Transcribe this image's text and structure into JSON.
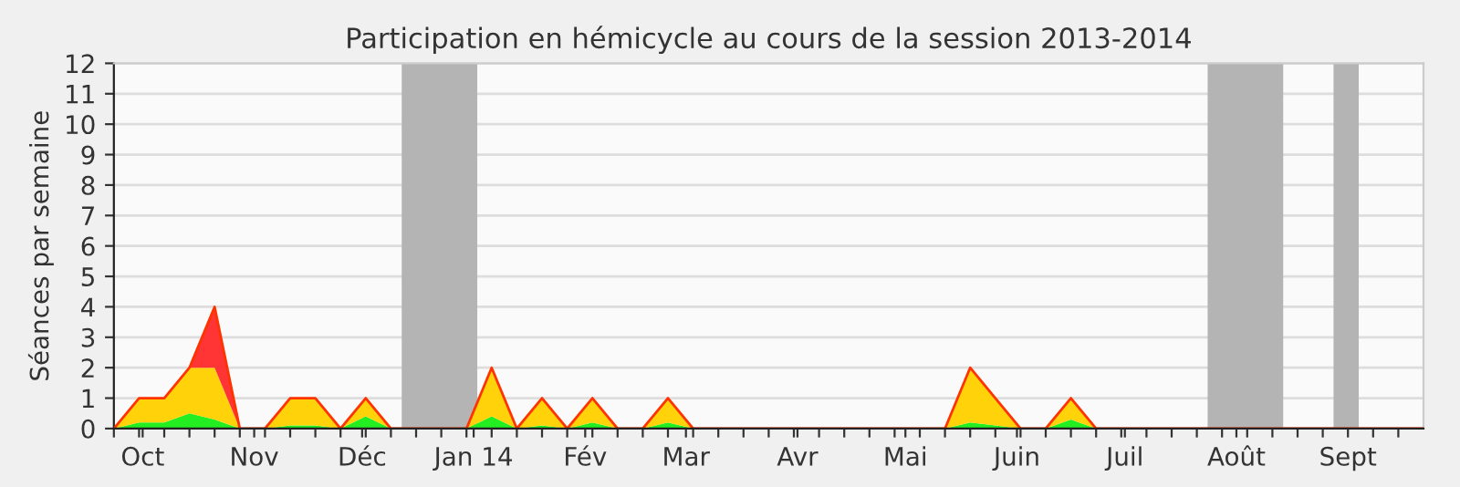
{
  "chart_data": {
    "type": "area",
    "title": "Participation en hémicycle au cours de la session 2013-2014",
    "ylabel": "Séances par semaine",
    "x": [
      "2013-09-23",
      "2013-09-30",
      "2013-10-07",
      "2013-10-14",
      "2013-10-21",
      "2013-10-28",
      "2013-11-04",
      "2013-11-11",
      "2013-11-18",
      "2013-11-25",
      "2013-12-02",
      "2013-12-09",
      "2013-12-16",
      "2013-12-23",
      "2013-12-30",
      "2014-01-06",
      "2014-01-13",
      "2014-01-20",
      "2014-01-27",
      "2014-02-03",
      "2014-02-10",
      "2014-02-17",
      "2014-02-24",
      "2014-03-03",
      "2014-03-10",
      "2014-03-17",
      "2014-03-24",
      "2014-03-31",
      "2014-04-07",
      "2014-04-14",
      "2014-04-21",
      "2014-04-28",
      "2014-05-05",
      "2014-05-12",
      "2014-05-19",
      "2014-05-26",
      "2014-06-02",
      "2014-06-09",
      "2014-06-16",
      "2014-06-23",
      "2014-06-30",
      "2014-07-07",
      "2014-07-14",
      "2014-07-21",
      "2014-07-28",
      "2014-08-04",
      "2014-08-11",
      "2014-08-18",
      "2014-08-25",
      "2014-09-01",
      "2014-09-08",
      "2014-09-15",
      "2014-09-22"
    ],
    "stacked": true,
    "series": [
      {
        "color": "#22ee22",
        "values": [
          0,
          0.2,
          0.2,
          0.5,
          0.3,
          0,
          0,
          0.1,
          0.1,
          0,
          0.4,
          0,
          0,
          0,
          0,
          0.4,
          0,
          0.1,
          0,
          0.2,
          0,
          0,
          0.2,
          0,
          0,
          0,
          0,
          0,
          0,
          0,
          0,
          0,
          0,
          0,
          0.2,
          0.1,
          0,
          0,
          0.3,
          0,
          0,
          0,
          0,
          0,
          0,
          0,
          0,
          0,
          0,
          0,
          0,
          0,
          0
        ]
      },
      {
        "color": "#ffd20a",
        "values": [
          0,
          0.8,
          0.8,
          1.5,
          1.7,
          0,
          0,
          0.9,
          0.9,
          0,
          0.6,
          0,
          0,
          0,
          0,
          1.6,
          0,
          0.9,
          0,
          0.8,
          0,
          0,
          0.8,
          0,
          0,
          0,
          0,
          0,
          0,
          0,
          0,
          0,
          0,
          0,
          1.8,
          0.9,
          0,
          0,
          0.7,
          0,
          0,
          0,
          0,
          0,
          0,
          0,
          0,
          0,
          0,
          0,
          0,
          0,
          0
        ]
      },
      {
        "color": "#ff3535",
        "values": [
          0,
          0,
          0,
          0,
          2,
          0,
          0,
          0,
          0,
          0,
          0,
          0,
          0,
          0,
          0,
          0,
          0,
          0,
          0,
          0,
          0,
          0,
          0,
          0,
          0,
          0,
          0,
          0,
          0,
          0,
          0,
          0,
          0,
          0,
          0,
          0,
          0,
          0,
          0,
          0,
          0,
          0,
          0,
          0,
          0,
          0,
          0,
          0,
          0,
          0,
          0,
          0,
          0
        ]
      }
    ],
    "xlim": [
      "2013-09-23",
      "2014-09-22"
    ],
    "xticks": [
      {
        "value": "2013-09-23",
        "label": null
      },
      {
        "value": "2013-09-30",
        "label": null
      },
      {
        "value": "2013-10-01",
        "label": "Oct"
      },
      {
        "value": "2013-10-07",
        "label": null
      },
      {
        "value": "2013-10-14",
        "label": null
      },
      {
        "value": "2013-10-21",
        "label": null
      },
      {
        "value": "2013-10-28",
        "label": null
      },
      {
        "value": "2013-11-01",
        "label": "Nov"
      },
      {
        "value": "2013-11-04",
        "label": null
      },
      {
        "value": "2013-11-11",
        "label": null
      },
      {
        "value": "2013-11-18",
        "label": null
      },
      {
        "value": "2013-11-25",
        "label": null
      },
      {
        "value": "2013-12-01",
        "label": "Déc"
      },
      {
        "value": "2013-12-02",
        "label": null
      },
      {
        "value": "2013-12-09",
        "label": null
      },
      {
        "value": "2013-12-16",
        "label": null
      },
      {
        "value": "2013-12-23",
        "label": null
      },
      {
        "value": "2013-12-30",
        "label": null
      },
      {
        "value": "2014-01-01",
        "label": "Jan 14"
      },
      {
        "value": "2014-01-06",
        "label": null
      },
      {
        "value": "2014-01-13",
        "label": null
      },
      {
        "value": "2014-01-20",
        "label": null
      },
      {
        "value": "2014-01-27",
        "label": null
      },
      {
        "value": "2014-02-01",
        "label": "Fév"
      },
      {
        "value": "2014-02-03",
        "label": null
      },
      {
        "value": "2014-02-10",
        "label": null
      },
      {
        "value": "2014-02-17",
        "label": null
      },
      {
        "value": "2014-02-24",
        "label": null
      },
      {
        "value": "2014-03-01",
        "label": "Mar"
      },
      {
        "value": "2014-03-03",
        "label": null
      },
      {
        "value": "2014-03-10",
        "label": null
      },
      {
        "value": "2014-03-17",
        "label": null
      },
      {
        "value": "2014-03-24",
        "label": null
      },
      {
        "value": "2014-03-31",
        "label": null
      },
      {
        "value": "2014-04-01",
        "label": "Avr"
      },
      {
        "value": "2014-04-07",
        "label": null
      },
      {
        "value": "2014-04-14",
        "label": null
      },
      {
        "value": "2014-04-21",
        "label": null
      },
      {
        "value": "2014-04-28",
        "label": null
      },
      {
        "value": "2014-05-01",
        "label": "Mai"
      },
      {
        "value": "2014-05-05",
        "label": null
      },
      {
        "value": "2014-05-12",
        "label": null
      },
      {
        "value": "2014-05-19",
        "label": null
      },
      {
        "value": "2014-05-26",
        "label": null
      },
      {
        "value": "2014-06-01",
        "label": "Juin"
      },
      {
        "value": "2014-06-02",
        "label": null
      },
      {
        "value": "2014-06-09",
        "label": null
      },
      {
        "value": "2014-06-16",
        "label": null
      },
      {
        "value": "2014-06-23",
        "label": null
      },
      {
        "value": "2014-06-30",
        "label": null
      },
      {
        "value": "2014-07-01",
        "label": "Juil"
      },
      {
        "value": "2014-07-07",
        "label": null
      },
      {
        "value": "2014-07-14",
        "label": null
      },
      {
        "value": "2014-07-21",
        "label": null
      },
      {
        "value": "2014-07-28",
        "label": null
      },
      {
        "value": "2014-08-01",
        "label": "Août"
      },
      {
        "value": "2014-08-04",
        "label": null
      },
      {
        "value": "2014-08-11",
        "label": null
      },
      {
        "value": "2014-08-18",
        "label": null
      },
      {
        "value": "2014-08-25",
        "label": null
      },
      {
        "value": "2014-09-01",
        "label": "Sept"
      },
      {
        "value": "2014-09-08",
        "label": null
      },
      {
        "value": "2014-09-15",
        "label": null
      }
    ],
    "ylim": [
      0,
      12
    ],
    "yticks": [
      0,
      1,
      2,
      3,
      4,
      5,
      6,
      7,
      8,
      9,
      10,
      11,
      12
    ],
    "grid": "y",
    "bands": [
      {
        "axis": "x",
        "from": "2013-12-12",
        "to": "2014-01-02",
        "color": "#b4b4b4"
      },
      {
        "axis": "x",
        "from": "2014-07-24",
        "to": "2014-08-14",
        "color": "#b4b4b4"
      },
      {
        "axis": "x",
        "from": "2014-08-28",
        "to": "2014-09-04",
        "color": "#b4b4b4"
      }
    ]
  }
}
